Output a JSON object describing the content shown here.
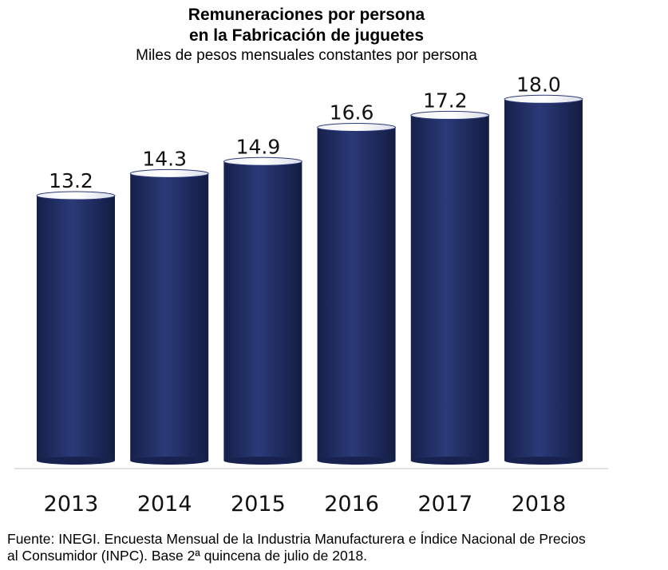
{
  "header": {
    "title_line1": "Remuneraciones por persona",
    "title_line2": "en la Fabricación de juguetes",
    "subtitle": "Miles de pesos mensuales constantes por persona"
  },
  "chart_data": {
    "type": "bar",
    "title": "Remuneraciones por persona en la Fabricación de juguetes",
    "subtitle": "Miles de pesos mensuales constantes por persona",
    "categories": [
      "2013",
      "2014",
      "2015",
      "2016",
      "2017",
      "2018"
    ],
    "values": [
      13.2,
      14.3,
      14.9,
      16.6,
      17.2,
      18.0
    ],
    "data_labels": [
      "13.2",
      "14.3",
      "14.9",
      "16.6",
      "17.2",
      "18.0"
    ],
    "xlabel": "",
    "ylabel": "",
    "bar_style": "cylinder",
    "bar_color": "#1f2b5e",
    "grid": false,
    "legend": "none"
  },
  "footer": {
    "source_line1": "Fuente: INEGI. Encuesta Mensual de la Industria Manufacturera e Índice Nacional de Precios",
    "source_line2": "al Consumidor (INPC). Base 2ª quincena de julio de 2018."
  }
}
